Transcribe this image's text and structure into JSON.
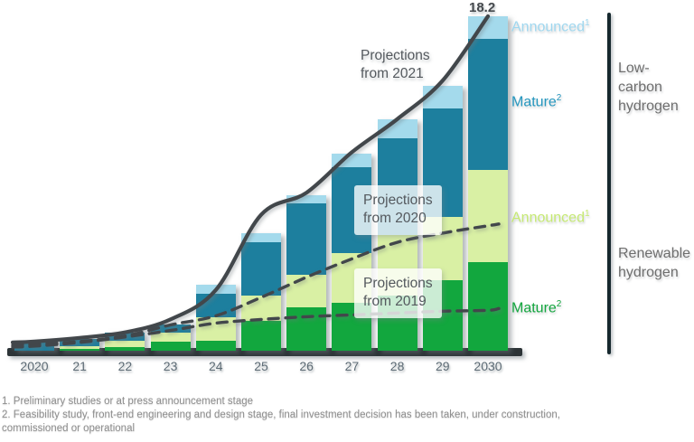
{
  "chart_data": {
    "type": "bar",
    "stacked": true,
    "categories": [
      "2020",
      "21",
      "22",
      "23",
      "24",
      "25",
      "26",
      "27",
      "28",
      "29",
      "2030"
    ],
    "series": [
      {
        "name": "Mature renewable",
        "color": "#12a73e",
        "values": [
          0,
          0.1,
          0.2,
          0.5,
          0.55,
          1.6,
          2.35,
          2.6,
          3.0,
          3.85,
          4.8
        ]
      },
      {
        "name": "Announced renewable",
        "color": "#d9f0a4",
        "values": [
          0,
          0.15,
          0.35,
          0.5,
          1.25,
          1.4,
          1.8,
          2.7,
          3.3,
          3.45,
          5.05
        ]
      },
      {
        "name": "Mature low-carbon",
        "color": "#1d7f9e",
        "values": [
          0.5,
          0.4,
          0.45,
          0.45,
          1.3,
          2.9,
          3.85,
          4.7,
          5.25,
          5.9,
          7.1
        ]
      },
      {
        "name": "Announced low-carbon",
        "color": "#a4daec",
        "values": [
          0,
          0,
          0,
          0,
          0.5,
          0.5,
          0.45,
          0.7,
          1.05,
          1.2,
          1.25
        ]
      }
    ],
    "lines": [
      {
        "name": "Projections from 2021",
        "style": "solid",
        "values": [
          0.5,
          0.7,
          1.0,
          1.7,
          3.3,
          7.4,
          8.6,
          10.8,
          12.6,
          14.7,
          18.2
        ]
      },
      {
        "name": "Projections from 2020",
        "style": "dashed",
        "values": [
          0.35,
          0.5,
          0.8,
          1.4,
          1.9,
          2.9,
          4.0,
          5.0,
          5.9,
          6.4,
          6.8
        ]
      },
      {
        "name": "Projections from 2019",
        "style": "dashed",
        "values": [
          0.25,
          0.45,
          0.75,
          1.1,
          1.5,
          1.7,
          1.85,
          1.95,
          2.05,
          2.15,
          2.2
        ]
      }
    ],
    "ylim": [
      0,
      18.2
    ],
    "top_value_label": "18.2",
    "line_color": "#42474b",
    "axis_color": "#2d3437"
  },
  "annotations": {
    "projections_2021": "Projections\nfrom 2021",
    "projections_2020": "Projections\nfrom 2020",
    "projections_2019": "Projections\nfrom 2019"
  },
  "legend": {
    "items": [
      {
        "text": "Announced",
        "sup": "1",
        "color": "#9fd7ef"
      },
      {
        "text": "Mature",
        "sup": "2",
        "color": "#2496be"
      },
      {
        "text": "Announced",
        "sup": "1",
        "color": "#c6e973"
      },
      {
        "text": "Mature",
        "sup": "2",
        "color": "#12a53d"
      }
    ]
  },
  "right_panel": {
    "low_carbon": "Low-\ncarbon\nhydrogen",
    "renewable": "Renewable\nhydrogen"
  },
  "footnotes": {
    "lines": [
      "1. Preliminary studies or at press announcement stage",
      "2. Feasibility study, front-end engineering and design stage, final investment decision has been taken, under construction,",
      "commissioned or operational"
    ]
  }
}
